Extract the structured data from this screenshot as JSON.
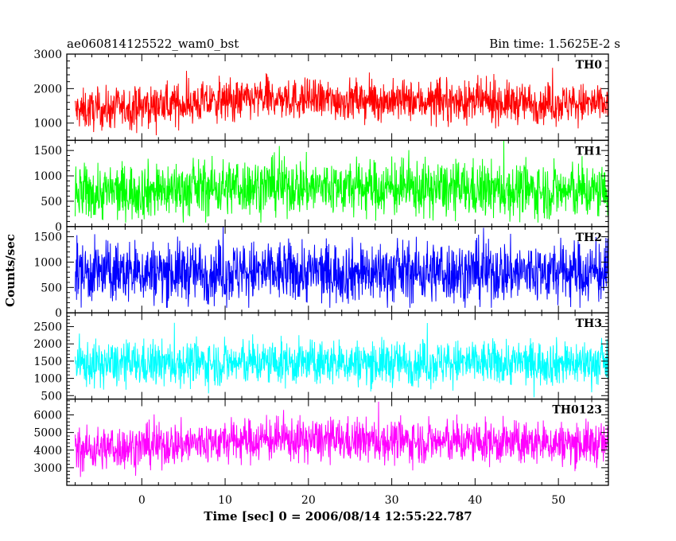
{
  "chart_data": {
    "type": "line",
    "title": "ae060814125522_wam0_bst",
    "bin_time_label": "Bin time: 1.5625E-2 s",
    "xlabel": "Time [sec] 0 = 2006/08/14 12:55:22.787",
    "ylabel": "Counts/sec",
    "xlim": [
      -9,
      56
    ],
    "x_data_range": [
      -8,
      56
    ],
    "xticks": [
      0,
      10,
      20,
      30,
      40,
      50
    ],
    "grid": false,
    "series": [
      {
        "name": "TH0",
        "color": "#ff0000",
        "ylim": [
          500,
          3000
        ],
        "yticks": [
          1000,
          2000,
          3000
        ],
        "baseline_start": 1350,
        "baseline_peak": 1700,
        "baseline_end": 1550,
        "spread": 400,
        "noise_range": [
          550,
          3000
        ]
      },
      {
        "name": "TH1",
        "color": "#00ff00",
        "ylim": [
          0,
          1700
        ],
        "yticks": [
          0,
          500,
          1000,
          1500
        ],
        "baseline_start": 650,
        "baseline_peak": 800,
        "baseline_end": 680,
        "spread": 380,
        "noise_range": [
          80,
          1700
        ]
      },
      {
        "name": "TH2",
        "color": "#0000ff",
        "ylim": [
          0,
          1700
        ],
        "yticks": [
          0,
          500,
          1000,
          1500
        ],
        "baseline_start": 800,
        "baseline_peak": 800,
        "baseline_end": 800,
        "spread": 420,
        "noise_range": [
          100,
          1700
        ]
      },
      {
        "name": "TH3",
        "color": "#00ffff",
        "ylim": [
          400,
          2900
        ],
        "yticks": [
          500,
          1000,
          1500,
          2000,
          2500
        ],
        "baseline_start": 1400,
        "baseline_peak": 1450,
        "baseline_end": 1450,
        "spread": 450,
        "noise_range": [
          450,
          2900
        ]
      },
      {
        "name": "TH0123",
        "color": "#ff00ff",
        "ylim": [
          2000,
          6900
        ],
        "yticks": [
          3000,
          4000,
          5000,
          6000
        ],
        "baseline_start": 4000,
        "baseline_peak": 4600,
        "baseline_end": 4350,
        "spread": 850,
        "noise_range": [
          2100,
          6900
        ]
      }
    ]
  }
}
